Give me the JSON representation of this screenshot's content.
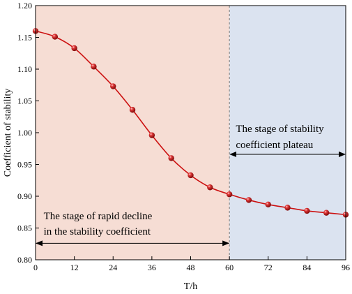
{
  "chart_data": {
    "type": "line",
    "xlabel": "T/h",
    "ylabel": "Coefficient of stability",
    "xlim": [
      0,
      96
    ],
    "ylim": [
      0.8,
      1.2
    ],
    "x_ticks": [
      "0",
      "12",
      "24",
      "36",
      "48",
      "60",
      "72",
      "84",
      "96"
    ],
    "y_ticks": [
      "0.80",
      "0.85",
      "0.90",
      "0.95",
      "1.00",
      "1.05",
      "1.10",
      "1.15",
      "1.20"
    ],
    "series": [
      {
        "color": "#cc1111",
        "marker": "sphere",
        "x": [
          0,
          6,
          12,
          18,
          24,
          30,
          36,
          42,
          48,
          54,
          60,
          66,
          72,
          78,
          84,
          90,
          96
        ],
        "y": [
          1.16,
          1.151,
          1.133,
          1.104,
          1.073,
          1.036,
          0.996,
          0.96,
          0.933,
          0.914,
          0.903,
          0.894,
          0.887,
          0.882,
          0.877,
          0.874,
          0.871
        ]
      }
    ],
    "regions": [
      {
        "x_start": 0,
        "x_end": 60,
        "color": "#f6ddd4"
      },
      {
        "x_start": 60,
        "x_end": 96,
        "color": "#dbe3f0"
      }
    ],
    "annotations": [
      {
        "lines": [
          "The stage of rapid decline",
          "in the stability coefficient"
        ],
        "arrow_from": 0,
        "arrow_to": 60,
        "arrow_y": 0.826
      },
      {
        "lines": [
          "The stage of stability",
          "coefficient plateau"
        ],
        "arrow_from": 60,
        "arrow_to": 96,
        "arrow_y": 0.966
      }
    ],
    "grid": false,
    "legend": "none"
  }
}
